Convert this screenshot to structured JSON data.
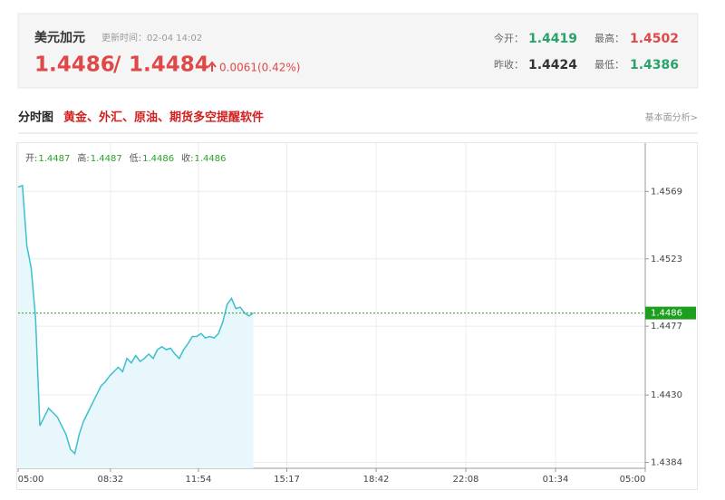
{
  "header": {
    "title": "美元加元",
    "update_time": "更新时间：02-04 14:02",
    "bid": 1.4486,
    "separator": "/",
    "ask": 1.4484,
    "change": "0.0061(0.42%)",
    "stats": [
      {
        "label": "今开：",
        "value": 1.4419
      },
      {
        "label": "最高：",
        "value": 1.4502
      },
      {
        "label": "昨收：",
        "value": 1.4424
      },
      {
        "label": "最低：",
        "value": 1.4386
      }
    ]
  },
  "section": {
    "title": "分时图",
    "ad": "黄金、外汇、原油、期货多空提醒软件",
    "link": "基本面分析>"
  },
  "chart_data": {
    "type": "area",
    "color": "#3cbfcf",
    "fill": "#e8f7fb",
    "grid": true,
    "info": [
      {
        "label": "开:",
        "value": 1.4487
      },
      {
        "label": "高:",
        "value": 1.4487
      },
      {
        "label": "低:",
        "value": 1.4486
      },
      {
        "label": "收:",
        "value": 1.4486
      }
    ],
    "last_price": 1.4486,
    "x": [
      "05:00",
      "05:10",
      "05:20",
      "05:30",
      "05:40",
      "05:50",
      "06:00",
      "06:10",
      "06:20",
      "06:30",
      "06:40",
      "06:50",
      "07:00",
      "07:10",
      "07:20",
      "07:30",
      "07:40",
      "07:50",
      "08:00",
      "08:10",
      "08:20",
      "08:30",
      "08:40",
      "08:50",
      "09:00",
      "09:10",
      "09:20",
      "09:30",
      "09:40",
      "09:50",
      "10:00",
      "10:10",
      "10:20",
      "10:30",
      "10:40",
      "10:50",
      "11:00",
      "11:10",
      "11:20",
      "11:30",
      "11:40",
      "11:50",
      "12:00",
      "12:10",
      "12:20",
      "12:30",
      "12:40",
      "12:50",
      "13:00",
      "13:10",
      "13:20",
      "13:30",
      "13:40",
      "13:50",
      "14:00"
    ],
    "series": [
      {
        "values": [
          1.4572,
          1.4573,
          1.4532,
          1.4517,
          1.4483,
          1.4409,
          1.4415,
          1.4421,
          1.4418,
          1.4415,
          1.4409,
          1.4403,
          1.4393,
          1.439,
          1.4403,
          1.4412,
          1.4418,
          1.4424,
          1.443,
          1.4436,
          1.4439,
          1.4443,
          1.4446,
          1.4449,
          1.4446,
          1.4455,
          1.4452,
          1.4457,
          1.4453,
          1.4455,
          1.4458,
          1.4455,
          1.4461,
          1.4463,
          1.4461,
          1.4462,
          1.4458,
          1.4455,
          1.4461,
          1.4465,
          1.447,
          1.447,
          1.4472,
          1.4469,
          1.447,
          1.4469,
          1.4472,
          1.448,
          1.4492,
          1.4496,
          1.4489,
          1.449,
          1.4486,
          1.4484,
          1.4486
        ]
      }
    ],
    "xlim": [
      "05:00",
      "05:00"
    ],
    "xticks": [
      "05:00",
      "08:32",
      "11:54",
      "15:17",
      "18:42",
      "22:08",
      "01:34",
      "05:00"
    ],
    "ylim": [
      1.438,
      1.4602
    ],
    "yticks": [
      1.4569,
      1.4523,
      1.4477,
      {
        "value": 1.443,
        "label": "1.4430"
      },
      1.4384
    ]
  }
}
